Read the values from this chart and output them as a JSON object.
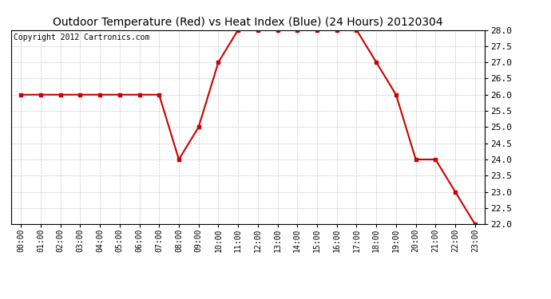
{
  "title": "Outdoor Temperature (Red) vs Heat Index (Blue) (24 Hours) 20120304",
  "copyright": "Copyright 2012 Cartronics.com",
  "x_labels": [
    "00:00",
    "01:00",
    "02:00",
    "03:00",
    "04:00",
    "05:00",
    "06:00",
    "07:00",
    "08:00",
    "09:00",
    "10:00",
    "11:00",
    "12:00",
    "13:00",
    "14:00",
    "15:00",
    "16:00",
    "17:00",
    "18:00",
    "19:00",
    "20:00",
    "21:00",
    "22:00",
    "23:00"
  ],
  "temp_red": [
    26.0,
    26.0,
    26.0,
    26.0,
    26.0,
    26.0,
    26.0,
    26.0,
    24.0,
    25.0,
    27.0,
    28.0,
    28.0,
    28.0,
    28.0,
    28.0,
    28.0,
    28.0,
    27.0,
    26.0,
    24.0,
    24.0,
    23.0,
    22.0
  ],
  "ylim": [
    22.0,
    28.0
  ],
  "yticks": [
    22.0,
    22.5,
    23.0,
    23.5,
    24.0,
    24.5,
    25.0,
    25.5,
    26.0,
    26.5,
    27.0,
    27.5,
    28.0
  ],
  "line_color": "#cc0000",
  "marker": "s",
  "marker_size": 3,
  "bg_color": "#ffffff",
  "grid_color": "#bbbbbb",
  "title_fontsize": 10,
  "copyright_fontsize": 7,
  "xtick_fontsize": 7,
  "ytick_fontsize": 8
}
